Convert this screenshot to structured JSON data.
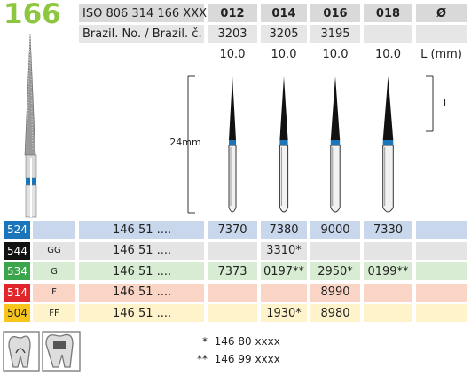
{
  "header": {
    "title": "166",
    "iso_label": "ISO 806 314 166 XXX ...",
    "sizes": [
      "012",
      "014",
      "016",
      "018",
      "Ø"
    ],
    "brazil_label": "Brazil. No. / Brazil. č.",
    "brazil_numbers": [
      "3203",
      "3205",
      "3195"
    ],
    "lengths": [
      "10.0",
      "10.0",
      "10.0",
      "10.0"
    ],
    "length_unit": "L (mm)"
  },
  "figure": {
    "total_length": "24mm",
    "head_length": "L"
  },
  "table": {
    "rows": [
      {
        "code": "524",
        "color": "#1b75bb",
        "background": "#c8d7ec",
        "grit": null,
        "number": "146 51 ....",
        "values": [
          "7370",
          "7380",
          "9000",
          "7330"
        ]
      },
      {
        "code": "544",
        "color": "#111111",
        "background": "#e4e4e4",
        "grit": "GG",
        "number": "146 51 ....",
        "values": [
          null,
          "3310*",
          null,
          null
        ]
      },
      {
        "code": "534",
        "color": "#3aa54a",
        "background": "#d7ecd2",
        "grit": "G",
        "number": "146 51 ....",
        "values": [
          "7373",
          "0197**",
          "2950*",
          "0199**"
        ]
      },
      {
        "code": "514",
        "color": "#e0262a",
        "background": "#fad5c6",
        "grit": "F",
        "number": "146 51 ....",
        "values": [
          null,
          null,
          "8990",
          null
        ]
      },
      {
        "code": "504",
        "color": "#f7c51b",
        "background": "#fff3cc",
        "grit": "FF",
        "number": "146 51 ....",
        "values": [
          null,
          "1930*",
          "8980",
          null
        ]
      }
    ]
  },
  "footnotes": [
    {
      "marker": "*",
      "text": "146 80 xxxx"
    },
    {
      "marker": "**",
      "text": "146 99 xxxx"
    }
  ]
}
